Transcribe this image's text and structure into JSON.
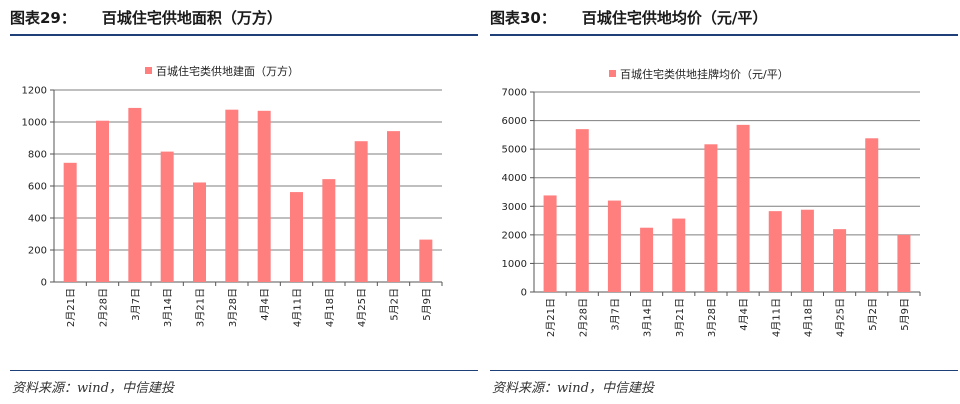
{
  "charts": [
    {
      "figure_label": "图表29：",
      "figure_title": "百城住宅供地面积（万方）",
      "source": "资料来源：wind，中信建投",
      "chart_data": {
        "type": "bar",
        "legend": "百城住宅类供地建面（万方）",
        "color": "#ff7f7f",
        "categories": [
          "2月21日",
          "2月28日",
          "3月7日",
          "3月14日",
          "3月21日",
          "3月28日",
          "4月4日",
          "4月11日",
          "4月18日",
          "4月25日",
          "5月2日",
          "5月9日"
        ],
        "values": [
          745,
          1008,
          1088,
          815,
          622,
          1077,
          1070,
          562,
          643,
          880,
          943,
          265
        ],
        "ylim": [
          0,
          1200
        ],
        "yticks": [
          0,
          200,
          400,
          600,
          800,
          1000,
          1200
        ],
        "grid": true,
        "legend_position": "top"
      }
    },
    {
      "figure_label": "图表30：",
      "figure_title": "百城住宅供地均价（元/平）",
      "source": "资料来源：wind，中信建投",
      "chart_data": {
        "type": "bar",
        "legend": "百城住宅类供地挂牌均价（元/平）",
        "color": "#ff7f7f",
        "categories": [
          "2月21日",
          "2月28日",
          "3月7日",
          "3月14日",
          "3月21日",
          "3月28日",
          "4月4日",
          "4月11日",
          "4月18日",
          "4月25日",
          "5月2日",
          "5月9日"
        ],
        "values": [
          3380,
          5700,
          3200,
          2250,
          2570,
          5170,
          5850,
          2830,
          2880,
          2200,
          5380,
          2000
        ],
        "ylim": [
          0,
          7000
        ],
        "yticks": [
          0,
          1000,
          2000,
          3000,
          4000,
          5000,
          6000,
          7000
        ],
        "grid": true,
        "legend_position": "top"
      }
    }
  ]
}
